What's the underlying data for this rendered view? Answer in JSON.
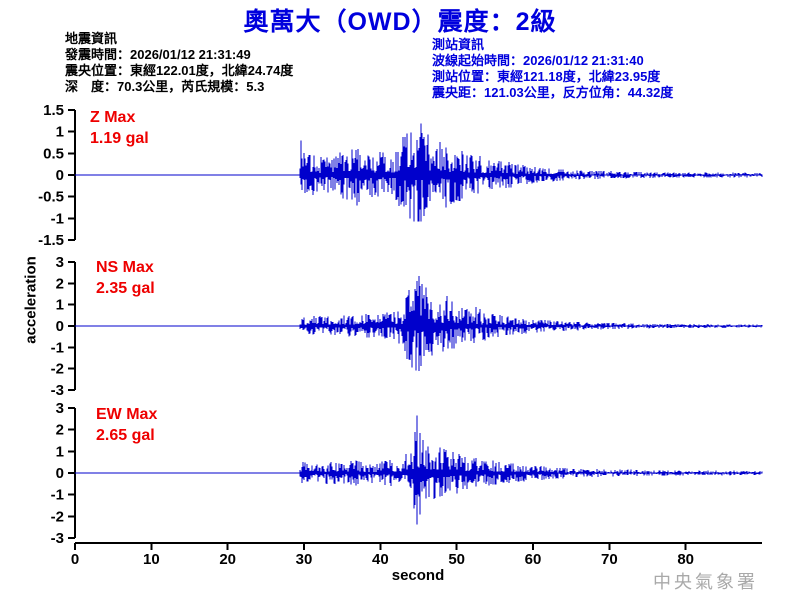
{
  "title": "奧萬大（OWD）震度：2級",
  "event_info": {
    "heading": "地震資訊",
    "lines": [
      "發震時間：2026/01/12 21:31:49",
      "震央位置：東經122.01度，北緯24.74度",
      "深　度：70.3公里，芮氏規模：5.3"
    ]
  },
  "station_info": {
    "heading": "測站資訊",
    "lines": [
      "波線起始時間：2026/01/12 21:31:40",
      "測站位置：東經121.18度，北緯23.95度",
      "震央距：121.03公里，反方位角：44.32度"
    ]
  },
  "watermark": "中央氣象署",
  "colors": {
    "title_blue": "#0000dd",
    "station_info_blue": "#0000dd",
    "event_info_black": "#000000",
    "trace_label_red": "#ee0000",
    "waveform_blue": "#0000cc",
    "watermark_gray": "#a9a9a9"
  },
  "chart_data": {
    "type": "line",
    "subtype": "seismogram-3-component",
    "title": "奧萬大（OWD）震度：2級",
    "xlabel": "second",
    "ylabel": "acceleration",
    "x_range": [
      0,
      90
    ],
    "xticks": [
      0,
      10,
      20,
      30,
      40,
      50,
      60,
      70,
      80
    ],
    "grid": false,
    "legend": "none",
    "signal_onset_seconds": 29.4,
    "traces": [
      {
        "name": "Z",
        "label": "Z Max",
        "max_label": "1.19 gal",
        "max_gal": 1.19,
        "peak_time_s": 45.3,
        "ylim": [
          -1.5,
          1.5
        ],
        "yticks": [
          1.5,
          1,
          0.5,
          0,
          -0.5,
          -1,
          -1.5
        ],
        "envelope_t_s": [
          29.3,
          29.6,
          30.2,
          31,
          32,
          33,
          34,
          35,
          36,
          36.8,
          37.5,
          38.5,
          40,
          41,
          42,
          43,
          44,
          45.3,
          46,
          47,
          48,
          49,
          50,
          51,
          52,
          53,
          54,
          55,
          56,
          57,
          58,
          59,
          60,
          62,
          64,
          66,
          68,
          70,
          73,
          76,
          80,
          85,
          90
        ],
        "envelope_gal": [
          0,
          0.9,
          0.5,
          0.45,
          0.5,
          0.45,
          0.5,
          0.55,
          0.6,
          0.8,
          0.55,
          0.5,
          0.55,
          0.5,
          0.6,
          0.9,
          1.05,
          1.19,
          1.0,
          0.95,
          0.85,
          0.7,
          0.65,
          0.55,
          0.5,
          0.45,
          0.4,
          0.38,
          0.33,
          0.3,
          0.26,
          0.22,
          0.2,
          0.16,
          0.13,
          0.11,
          0.1,
          0.09,
          0.08,
          0.07,
          0.06,
          0.06,
          0.05
        ]
      },
      {
        "name": "NS",
        "label": "NS Max",
        "max_label": "2.35 gal",
        "max_gal": 2.35,
        "peak_time_s": 45.1,
        "ylim": [
          -3,
          3
        ],
        "yticks": [
          3,
          2,
          1,
          0,
          -1,
          -2,
          -3
        ],
        "envelope_t_s": [
          29.3,
          29.6,
          30.3,
          31,
          32,
          33,
          34,
          35,
          36,
          37,
          38,
          39,
          40,
          41,
          42,
          43,
          43.8,
          44.5,
          45.1,
          45.8,
          46.5,
          47.2,
          48,
          48.8,
          49.5,
          50.5,
          51.5,
          52.5,
          53.5,
          54.5,
          56,
          57,
          58,
          59,
          60,
          62,
          64,
          66,
          68,
          70,
          73,
          76,
          80,
          85,
          90
        ],
        "envelope_gal": [
          0,
          0.6,
          0.4,
          0.45,
          0.5,
          0.45,
          0.5,
          0.55,
          0.5,
          0.55,
          0.6,
          0.55,
          0.6,
          0.65,
          0.7,
          1.0,
          1.9,
          2.1,
          2.35,
          1.9,
          1.6,
          1.4,
          1.3,
          1.45,
          1.1,
          0.95,
          0.85,
          0.9,
          0.7,
          0.62,
          0.5,
          0.45,
          0.42,
          0.38,
          0.33,
          0.28,
          0.24,
          0.2,
          0.17,
          0.15,
          0.13,
          0.11,
          0.1,
          0.09,
          0.08
        ]
      },
      {
        "name": "EW",
        "label": "EW Max",
        "max_label": "2.65 gal",
        "max_gal": 2.65,
        "peak_time_s": 44.8,
        "ylim": [
          -3,
          3
        ],
        "yticks": [
          3,
          2,
          1,
          0,
          -1,
          -2,
          -3
        ],
        "envelope_t_s": [
          29.3,
          29.6,
          30.3,
          31,
          32,
          33,
          34,
          35,
          36,
          37,
          38,
          39,
          40,
          41,
          42,
          43,
          44,
          44.8,
          45.5,
          46.2,
          47,
          48,
          49,
          50,
          51,
          52,
          53,
          54,
          55,
          56,
          57,
          58,
          59,
          60,
          62,
          64,
          66,
          68,
          70,
          73,
          76,
          80,
          85,
          90
        ],
        "envelope_gal": [
          0,
          0.65,
          0.45,
          0.5,
          0.45,
          0.5,
          0.55,
          0.5,
          0.55,
          0.6,
          0.55,
          0.5,
          0.55,
          0.6,
          0.65,
          0.75,
          1.1,
          2.65,
          1.7,
          1.5,
          1.35,
          1.2,
          1.05,
          0.95,
          0.85,
          0.75,
          0.68,
          0.62,
          0.58,
          0.52,
          0.48,
          0.44,
          0.4,
          0.36,
          0.3,
          0.26,
          0.22,
          0.2,
          0.18,
          0.15,
          0.13,
          0.12,
          0.11,
          0.1
        ]
      }
    ]
  }
}
